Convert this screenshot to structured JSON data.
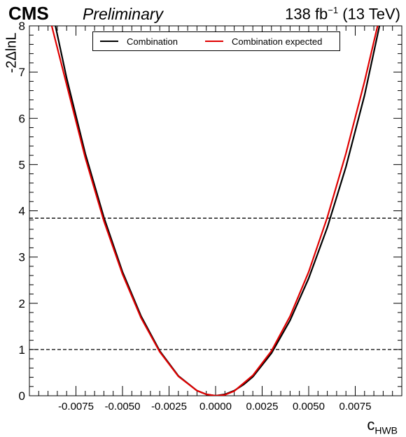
{
  "header": {
    "experiment": "CMS",
    "status": "Preliminary",
    "lumi_main": "138 fb",
    "lumi_exp": "−1",
    "lumi_energy": "(13 TeV)"
  },
  "chart_data": {
    "type": "line",
    "xlabel_main": "c",
    "xlabel_sub": "HWB",
    "ylabel": "-2ΔlnL",
    "xlim": [
      -0.01,
      0.01
    ],
    "ylim": [
      0,
      8
    ],
    "x_ticks": [
      -0.0075,
      -0.005,
      -0.0025,
      0.0,
      0.0025,
      0.005,
      0.0075
    ],
    "x_tick_labels": [
      "-0.0075",
      "-0.0050",
      "-0.0025",
      "0.0000",
      "0.0025",
      "0.0050",
      "0.0075"
    ],
    "y_ticks": [
      0,
      1,
      2,
      3,
      4,
      5,
      6,
      7,
      8
    ],
    "y_tick_labels": [
      "0",
      "1",
      "2",
      "3",
      "4",
      "5",
      "6",
      "7",
      "8"
    ],
    "reference_lines": [
      {
        "y": 1,
        "style": "dashed"
      },
      {
        "y": 3.84,
        "style": "dashed"
      }
    ],
    "legend_position": "top-center",
    "series": [
      {
        "name": "Combination",
        "color": "#000000",
        "x": [
          -0.0086,
          -0.008,
          -0.007,
          -0.006,
          -0.005,
          -0.004,
          -0.003,
          -0.002,
          -0.001,
          -0.0005,
          0.0,
          0.0005,
          0.001,
          0.0015,
          0.002,
          0.003,
          0.004,
          0.005,
          0.006,
          0.007,
          0.008,
          0.0088
        ],
        "y": [
          8.0,
          6.87,
          5.24,
          3.86,
          2.68,
          1.72,
          0.97,
          0.43,
          0.11,
          0.03,
          0.0,
          0.03,
          0.11,
          0.24,
          0.41,
          0.92,
          1.63,
          2.54,
          3.64,
          4.95,
          6.5,
          8.0
        ]
      },
      {
        "name": "Combination expected",
        "color": "#e00000",
        "x": [
          -0.0088,
          -0.008,
          -0.007,
          -0.006,
          -0.005,
          -0.004,
          -0.003,
          -0.002,
          -0.001,
          -0.0005,
          0.0,
          0.0005,
          0.001,
          0.002,
          0.003,
          0.004,
          0.005,
          0.006,
          0.007,
          0.008,
          0.0087
        ],
        "y": [
          8.0,
          6.73,
          5.15,
          3.78,
          2.63,
          1.68,
          0.95,
          0.42,
          0.11,
          0.03,
          0.0,
          0.02,
          0.1,
          0.44,
          0.97,
          1.72,
          2.68,
          3.86,
          5.24,
          6.8,
          8.0
        ]
      }
    ]
  }
}
